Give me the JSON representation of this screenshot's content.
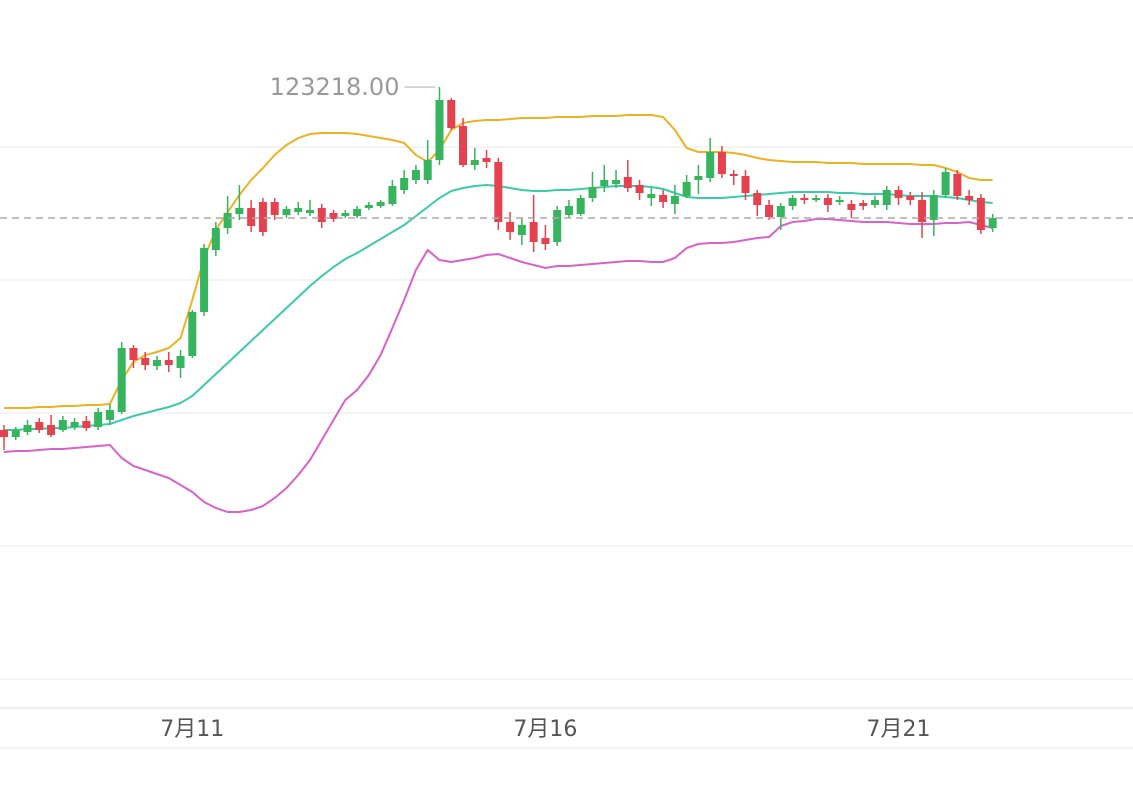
{
  "chart_data": {
    "type": "candlestick",
    "categories": [
      null,
      null,
      null,
      null,
      null,
      null,
      null,
      null,
      null,
      null,
      null,
      null,
      null,
      null,
      null,
      null,
      "7月11",
      null,
      null,
      null,
      null,
      null,
      null,
      null,
      null,
      null,
      null,
      null,
      null,
      null,
      null,
      null,
      null,
      null,
      null,
      null,
      null,
      null,
      null,
      null,
      null,
      null,
      null,
      null,
      null,
      null,
      "7月16",
      null,
      null,
      null,
      null,
      null,
      null,
      null,
      null,
      null,
      null,
      null,
      null,
      null,
      null,
      null,
      null,
      null,
      null,
      null,
      null,
      null,
      null,
      null,
      null,
      null,
      null,
      null,
      null,
      null,
      "7月21",
      null,
      null,
      null,
      null,
      null,
      null,
      null,
      null
    ],
    "open": [
      109500,
      109220,
      109420,
      109820,
      109700,
      109500,
      109620,
      109860,
      109620,
      109900,
      110220,
      112780,
      112380,
      112060,
      112300,
      111980,
      112460,
      114220,
      116700,
      117580,
      118140,
      118380,
      118620,
      118620,
      118100,
      118220,
      118180,
      118380,
      118180,
      118060,
      118060,
      118380,
      118460,
      118540,
      119100,
      119500,
      119500,
      120300,
      122700,
      121660,
      120100,
      120380,
      120220,
      117820,
      117300,
      117820,
      117180,
      117020,
      118100,
      118140,
      118780,
      119260,
      119340,
      119620,
      119300,
      118780,
      118900,
      118540,
      118860,
      119500,
      119580,
      120620,
      119740,
      119660,
      118980,
      118500,
      118020,
      118460,
      118780,
      118700,
      118780,
      118620,
      118540,
      118580,
      118500,
      118500,
      119100,
      118860,
      118700,
      117900,
      118900,
      119740,
      118860,
      118780,
      117580
    ],
    "high": [
      109700,
      109620,
      109900,
      109980,
      110100,
      110060,
      109980,
      110060,
      110380,
      110540,
      113020,
      112900,
      112620,
      112460,
      112620,
      112700,
      114300,
      116940,
      117820,
      118860,
      119300,
      118700,
      118780,
      118780,
      118460,
      118620,
      118700,
      118540,
      118300,
      118300,
      118460,
      118620,
      118700,
      119500,
      119900,
      120100,
      121100,
      123218,
      122780,
      121980,
      120780,
      120700,
      120380,
      118220,
      117980,
      118900,
      117700,
      118460,
      118700,
      118900,
      119820,
      120100,
      119900,
      120300,
      119500,
      119180,
      119100,
      119300,
      119700,
      120100,
      121180,
      120860,
      119900,
      119900,
      119100,
      118700,
      118580,
      118900,
      118940,
      118900,
      118940,
      118860,
      118700,
      118700,
      118860,
      119260,
      119260,
      119020,
      119020,
      119100,
      119980,
      119900,
      119100,
      118940,
      118140
    ],
    "low": [
      108700,
      109100,
      109300,
      109380,
      109220,
      109420,
      109500,
      109460,
      109500,
      109700,
      110140,
      111980,
      111900,
      111900,
      111820,
      111580,
      112380,
      114060,
      116460,
      117340,
      117900,
      117420,
      117260,
      117900,
      117980,
      118100,
      118060,
      117580,
      117820,
      117980,
      117980,
      118300,
      118380,
      118460,
      118940,
      119340,
      119340,
      120100,
      121500,
      120020,
      119900,
      119980,
      117500,
      117100,
      116900,
      116620,
      116700,
      116860,
      117980,
      118060,
      118620,
      119020,
      119180,
      119020,
      118700,
      118460,
      118380,
      118140,
      118780,
      118940,
      119420,
      119580,
      119300,
      118700,
      118060,
      117900,
      117500,
      118300,
      118540,
      118620,
      118220,
      118500,
      117980,
      118300,
      118380,
      118300,
      118500,
      118500,
      117180,
      117260,
      118780,
      118700,
      118500,
      117340,
      117420
    ],
    "close": [
      109220,
      109500,
      109700,
      109500,
      109300,
      109900,
      109820,
      109580,
      110220,
      110300,
      112780,
      112300,
      112100,
      112300,
      112100,
      112460,
      114220,
      116780,
      117580,
      118180,
      118380,
      117660,
      117420,
      118100,
      118340,
      118380,
      118300,
      117820,
      117940,
      118180,
      118340,
      118500,
      118620,
      119260,
      119580,
      119900,
      120300,
      122700,
      121580,
      120100,
      120300,
      120220,
      117820,
      117420,
      117700,
      117020,
      116940,
      118300,
      118460,
      118780,
      119220,
      119500,
      119500,
      119180,
      118980,
      118940,
      118620,
      118860,
      119420,
      119660,
      120620,
      119740,
      119660,
      118980,
      118500,
      118020,
      118460,
      118780,
      118700,
      118780,
      118500,
      118700,
      118300,
      118460,
      118700,
      119100,
      118780,
      118700,
      117820,
      118900,
      119820,
      118860,
      118700,
      117500,
      117980
    ],
    "up_color": "#36b45e",
    "down_color": "#e5424f",
    "bands": [
      {
        "color": "#ecb223",
        "values": [
          110380,
          110380,
          110380,
          110420,
          110420,
          110460,
          110460,
          110500,
          110500,
          110540,
          111500,
          112220,
          112500,
          112620,
          112780,
          113180,
          114700,
          116380,
          117500,
          118220,
          118900,
          119500,
          119980,
          120500,
          120900,
          121180,
          121340,
          121380,
          121380,
          121380,
          121340,
          121260,
          121180,
          121100,
          120980,
          120500,
          120220,
          120700,
          121500,
          121780,
          121860,
          121900,
          121900,
          121940,
          121980,
          121980,
          121980,
          122020,
          122020,
          122020,
          122060,
          122060,
          122060,
          122100,
          122100,
          122100,
          122020,
          121500,
          120780,
          120620,
          120620,
          120620,
          120580,
          120500,
          120380,
          120300,
          120260,
          120220,
          120220,
          120220,
          120180,
          120180,
          120180,
          120140,
          120140,
          120140,
          120140,
          120140,
          120100,
          120100,
          119980,
          119820,
          119580,
          119500,
          119500
        ]
      },
      {
        "color": "#3dcaa9",
        "values": [
          109500,
          109500,
          109540,
          109540,
          109580,
          109580,
          109620,
          109660,
          109700,
          109740,
          109900,
          110060,
          110180,
          110300,
          110420,
          110580,
          110860,
          111300,
          111740,
          112180,
          112620,
          113060,
          113500,
          113940,
          114380,
          114820,
          115260,
          115660,
          116020,
          116340,
          116580,
          116860,
          117140,
          117420,
          117700,
          118060,
          118420,
          118780,
          119060,
          119180,
          119260,
          119300,
          119260,
          119180,
          119100,
          119060,
          119060,
          119100,
          119100,
          119140,
          119180,
          119220,
          119260,
          119260,
          119260,
          119220,
          119140,
          118980,
          118820,
          118780,
          118780,
          118780,
          118820,
          118860,
          118900,
          118940,
          118980,
          119020,
          119020,
          119020,
          119020,
          118980,
          118980,
          118940,
          118940,
          118940,
          118900,
          118860,
          118860,
          118860,
          118820,
          118780,
          118700,
          118620,
          118580
        ]
      },
      {
        "color": "#d862c9",
        "values": [
          108620,
          108660,
          108660,
          108700,
          108740,
          108740,
          108780,
          108820,
          108860,
          108900,
          108380,
          108060,
          107900,
          107740,
          107580,
          107300,
          107020,
          106620,
          106380,
          106220,
          106220,
          106300,
          106460,
          106780,
          107180,
          107700,
          108300,
          109100,
          109900,
          110700,
          111100,
          111700,
          112500,
          113580,
          114700,
          115900,
          116700,
          116300,
          116220,
          116300,
          116380,
          116500,
          116540,
          116380,
          116220,
          116100,
          115980,
          116060,
          116060,
          116100,
          116140,
          116180,
          116220,
          116260,
          116260,
          116220,
          116220,
          116380,
          116780,
          116940,
          116980,
          116980,
          117020,
          117100,
          117180,
          117220,
          117660,
          117820,
          117860,
          117940,
          117940,
          117900,
          117860,
          117820,
          117820,
          117820,
          117780,
          117740,
          117740,
          117740,
          117780,
          117780,
          117820,
          117700,
          117580
        ]
      }
    ],
    "high_label": "123218.00",
    "ylim": [
      98380,
      126700
    ],
    "grid_lines": [
      120820,
      115500,
      110180,
      104860,
      99540
    ],
    "last_price_line": true
  }
}
